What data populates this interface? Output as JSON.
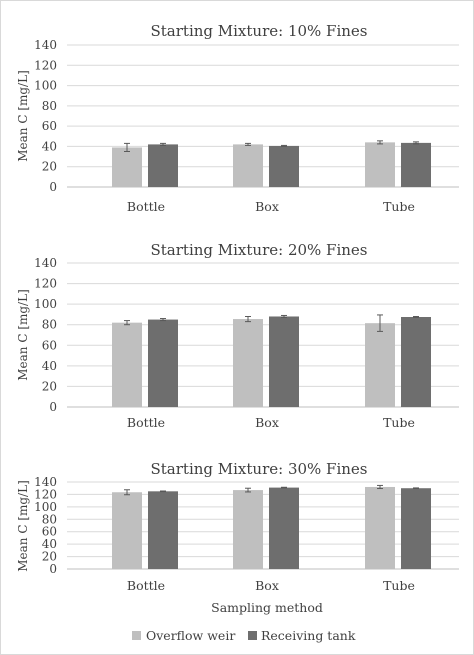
{
  "colors": {
    "overflow_weir": "#bfbfbf",
    "receiving_tank": "#6e6e6e",
    "grid": "#d9d9d9",
    "axis": "#bfbfbf",
    "error_bar": "#595959"
  },
  "shared": {
    "xlabel": "Sampling method",
    "ylabel": "Mean C [mg/L]",
    "legend": [
      "Overflow weir",
      "Receiving tank"
    ],
    "legend_position": "bottom"
  },
  "chart_data": [
    {
      "type": "bar",
      "title": "Starting Mixture: 10% Fines",
      "categories": [
        "Bottle",
        "Box",
        "Tube"
      ],
      "ylabel": "Mean C [mg/L]",
      "ylim": [
        0,
        140
      ],
      "yticks": [
        0,
        20,
        40,
        60,
        80,
        100,
        120,
        140
      ],
      "grid": true,
      "series": [
        {
          "name": "Overflow weir",
          "values": [
            39,
            42,
            44
          ],
          "errors": [
            4,
            1,
            1.5
          ]
        },
        {
          "name": "Receiving tank",
          "values": [
            42,
            40.5,
            43.5
          ],
          "errors": [
            1,
            0.5,
            1
          ]
        }
      ]
    },
    {
      "type": "bar",
      "title": "Starting Mixture: 20% Fines",
      "categories": [
        "Bottle",
        "Box",
        "Tube"
      ],
      "ylabel": "Mean C [mg/L]",
      "ylim": [
        0,
        140
      ],
      "yticks": [
        0,
        20,
        40,
        60,
        80,
        100,
        120,
        140
      ],
      "grid": true,
      "series": [
        {
          "name": "Overflow weir",
          "values": [
            82,
            85.5,
            81.5
          ],
          "errors": [
            2,
            2.5,
            8
          ]
        },
        {
          "name": "Receiving tank",
          "values": [
            85,
            88,
            87.5
          ],
          "errors": [
            1,
            1,
            0.5
          ]
        }
      ]
    },
    {
      "type": "bar",
      "title": "Starting Mixture: 30% Fines",
      "categories": [
        "Bottle",
        "Box",
        "Tube"
      ],
      "ylabel": "Mean C [mg/L]",
      "xlabel": "Sampling method",
      "ylim": [
        0,
        140
      ],
      "yticks": [
        0,
        20,
        40,
        60,
        80,
        100,
        120,
        140
      ],
      "grid": true,
      "series": [
        {
          "name": "Overflow weir",
          "values": [
            123.5,
            127,
            132
          ],
          "errors": [
            4,
            3,
            2.5
          ]
        },
        {
          "name": "Receiving tank",
          "values": [
            125,
            131,
            130
          ],
          "errors": [
            0.5,
            0.5,
            0.5
          ]
        }
      ]
    }
  ]
}
